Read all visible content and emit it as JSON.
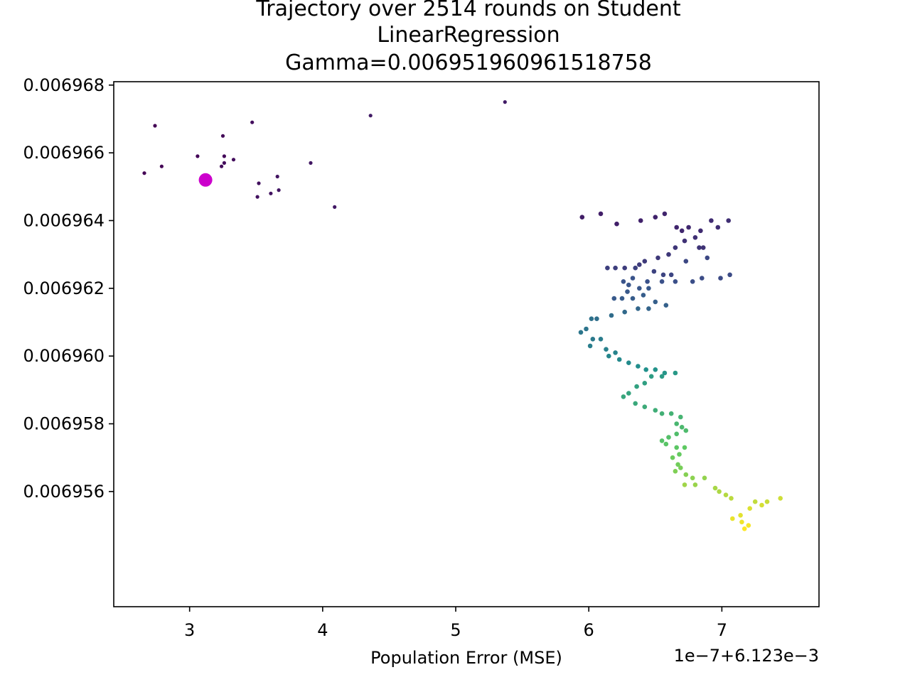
{
  "chart_data": {
    "type": "scatter",
    "title_lines": [
      "Trajectory over 2514 rounds on Student",
      "LinearRegression",
      "Gamma=0.006951960961518758"
    ],
    "xlabel": "Population Error (MSE)",
    "ylabel": "",
    "x_offset_label": "1e−7+6.123e−3",
    "x_unit_note": "x values are in units of 1e-7 added to 6.123e-3",
    "xlim": [
      2.43,
      7.73
    ],
    "ylim": [
      0.0069526,
      0.0069681
    ],
    "x_ticks": [
      3,
      4,
      5,
      6,
      7
    ],
    "x_tick_labels": [
      "3",
      "4",
      "5",
      "6",
      "7"
    ],
    "y_ticks": [
      0.006956,
      0.006958,
      0.00696,
      0.006962,
      0.006964,
      0.006966,
      0.006968
    ],
    "y_tick_labels": [
      "0.006956",
      "0.006958",
      "0.006960",
      "0.006962",
      "0.006964",
      "0.006966",
      "0.006968"
    ],
    "grid": false,
    "legend": "none",
    "colormap": "viridis",
    "colors": {
      "start_marker": "#cc00cc",
      "frame": "#000000"
    },
    "start_point": {
      "x": 3.12,
      "y": 0.0069652
    },
    "points": [
      [
        2.74,
        0.0069668
      ],
      [
        2.66,
        0.0069654
      ],
      [
        2.79,
        0.0069656
      ],
      [
        3.06,
        0.0069659
      ],
      [
        3.25,
        0.0069665
      ],
      [
        3.26,
        0.0069659
      ],
      [
        3.24,
        0.0069656
      ],
      [
        3.26,
        0.0069657
      ],
      [
        3.33,
        0.0069658
      ],
      [
        3.47,
        0.0069669
      ],
      [
        3.52,
        0.0069651
      ],
      [
        3.51,
        0.0069647
      ],
      [
        3.61,
        0.0069648
      ],
      [
        3.66,
        0.0069653
      ],
      [
        3.67,
        0.0069649
      ],
      [
        3.91,
        0.0069657
      ],
      [
        4.09,
        0.0069644
      ],
      [
        4.36,
        0.0069671
      ],
      [
        5.37,
        0.0069675
      ],
      [
        5.95,
        0.0069641
      ],
      [
        6.09,
        0.0069642
      ],
      [
        6.21,
        0.0069639
      ],
      [
        6.39,
        0.006964
      ],
      [
        6.5,
        0.0069641
      ],
      [
        6.57,
        0.0069642
      ],
      [
        6.66,
        0.0069638
      ],
      [
        6.7,
        0.0069637
      ],
      [
        6.75,
        0.0069638
      ],
      [
        6.84,
        0.0069637
      ],
      [
        6.92,
        0.006964
      ],
      [
        6.97,
        0.0069638
      ],
      [
        7.05,
        0.006964
      ],
      [
        6.8,
        0.0069635
      ],
      [
        6.72,
        0.0069634
      ],
      [
        6.86,
        0.0069632
      ],
      [
        6.83,
        0.0069632
      ],
      [
        6.65,
        0.0069632
      ],
      [
        6.6,
        0.006963
      ],
      [
        6.52,
        0.0069629
      ],
      [
        6.42,
        0.0069628
      ],
      [
        6.38,
        0.0069627
      ],
      [
        6.27,
        0.0069626
      ],
      [
        6.2,
        0.0069626
      ],
      [
        6.14,
        0.0069626
      ],
      [
        6.35,
        0.0069626
      ],
      [
        6.49,
        0.0069625
      ],
      [
        6.56,
        0.0069624
      ],
      [
        6.62,
        0.0069624
      ],
      [
        6.73,
        0.0069628
      ],
      [
        6.89,
        0.0069629
      ],
      [
        6.99,
        0.0069623
      ],
      [
        7.06,
        0.0069624
      ],
      [
        6.85,
        0.0069623
      ],
      [
        6.78,
        0.0069622
      ],
      [
        6.65,
        0.0069622
      ],
      [
        6.55,
        0.0069622
      ],
      [
        6.44,
        0.0069622
      ],
      [
        6.33,
        0.0069623
      ],
      [
        6.26,
        0.0069622
      ],
      [
        6.3,
        0.0069621
      ],
      [
        6.38,
        0.006962
      ],
      [
        6.45,
        0.006962
      ],
      [
        6.29,
        0.0069619
      ],
      [
        6.19,
        0.0069617
      ],
      [
        6.25,
        0.0069617
      ],
      [
        6.33,
        0.0069617
      ],
      [
        6.41,
        0.0069618
      ],
      [
        6.5,
        0.0069616
      ],
      [
        6.58,
        0.0069615
      ],
      [
        6.45,
        0.0069614
      ],
      [
        6.37,
        0.0069614
      ],
      [
        6.27,
        0.0069613
      ],
      [
        6.17,
        0.0069612
      ],
      [
        6.06,
        0.0069611
      ],
      [
        6.02,
        0.0069611
      ],
      [
        5.98,
        0.0069608
      ],
      [
        5.94,
        0.0069607
      ],
      [
        6.03,
        0.0069605
      ],
      [
        6.09,
        0.0069605
      ],
      [
        6.01,
        0.0069603
      ],
      [
        6.13,
        0.0069602
      ],
      [
        6.2,
        0.0069601
      ],
      [
        6.15,
        0.00696
      ],
      [
        6.23,
        0.0069599
      ],
      [
        6.3,
        0.0069598
      ],
      [
        6.37,
        0.0069597
      ],
      [
        6.43,
        0.0069596
      ],
      [
        6.5,
        0.0069596
      ],
      [
        6.57,
        0.0069595
      ],
      [
        6.65,
        0.0069595
      ],
      [
        6.55,
        0.0069594
      ],
      [
        6.47,
        0.0069594
      ],
      [
        6.42,
        0.0069592
      ],
      [
        6.36,
        0.0069591
      ],
      [
        6.3,
        0.0069589
      ],
      [
        6.26,
        0.0069588
      ],
      [
        6.35,
        0.0069586
      ],
      [
        6.42,
        0.0069585
      ],
      [
        6.5,
        0.0069584
      ],
      [
        6.55,
        0.0069583
      ],
      [
        6.62,
        0.0069583
      ],
      [
        6.69,
        0.0069582
      ],
      [
        6.66,
        0.006958
      ],
      [
        6.7,
        0.0069579
      ],
      [
        6.73,
        0.0069578
      ],
      [
        6.66,
        0.0069577
      ],
      [
        6.6,
        0.0069576
      ],
      [
        6.55,
        0.0069575
      ],
      [
        6.58,
        0.0069574
      ],
      [
        6.66,
        0.0069573
      ],
      [
        6.72,
        0.0069573
      ],
      [
        6.68,
        0.0069571
      ],
      [
        6.63,
        0.006957
      ],
      [
        6.67,
        0.0069568
      ],
      [
        6.69,
        0.0069567
      ],
      [
        6.65,
        0.0069566
      ],
      [
        6.73,
        0.0069565
      ],
      [
        6.78,
        0.0069564
      ],
      [
        6.87,
        0.0069564
      ],
      [
        6.8,
        0.0069562
      ],
      [
        6.72,
        0.0069562
      ],
      [
        6.95,
        0.0069561
      ],
      [
        6.98,
        0.006956
      ],
      [
        7.03,
        0.0069559
      ],
      [
        7.07,
        0.0069558
      ],
      [
        7.25,
        0.0069557
      ],
      [
        7.34,
        0.0069557
      ],
      [
        7.44,
        0.0069558
      ],
      [
        7.3,
        0.0069556
      ],
      [
        7.21,
        0.0069555
      ],
      [
        7.14,
        0.0069553
      ],
      [
        7.08,
        0.0069552
      ],
      [
        7.15,
        0.0069551
      ],
      [
        7.2,
        0.006955
      ],
      [
        7.17,
        0.0069549
      ]
    ]
  }
}
